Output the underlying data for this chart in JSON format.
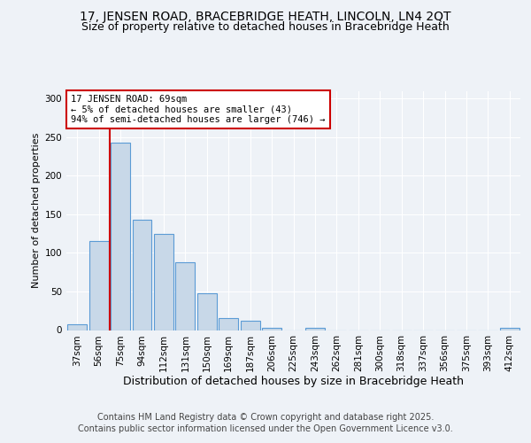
{
  "title1": "17, JENSEN ROAD, BRACEBRIDGE HEATH, LINCOLN, LN4 2QT",
  "title2": "Size of property relative to detached houses in Bracebridge Heath",
  "xlabel": "Distribution of detached houses by size in Bracebridge Heath",
  "ylabel": "Number of detached properties",
  "categories": [
    "37sqm",
    "56sqm",
    "75sqm",
    "94sqm",
    "112sqm",
    "131sqm",
    "150sqm",
    "169sqm",
    "187sqm",
    "206sqm",
    "225sqm",
    "243sqm",
    "262sqm",
    "281sqm",
    "300sqm",
    "318sqm",
    "337sqm",
    "356sqm",
    "375sqm",
    "393sqm",
    "412sqm"
  ],
  "values": [
    8,
    115,
    243,
    143,
    125,
    88,
    48,
    15,
    12,
    3,
    0,
    3,
    0,
    0,
    0,
    0,
    0,
    0,
    0,
    0,
    3
  ],
  "bar_color": "#c8d8e8",
  "bar_edge_color": "#5b9bd5",
  "vline_x": 1.5,
  "vline_color": "#cc0000",
  "annotation_text": "17 JENSEN ROAD: 69sqm\n← 5% of detached houses are smaller (43)\n94% of semi-detached houses are larger (746) →",
  "annotation_box_color": "#ffffff",
  "annotation_box_edge": "#cc0000",
  "ylim": [
    0,
    310
  ],
  "yticks": [
    0,
    50,
    100,
    150,
    200,
    250,
    300
  ],
  "footer1": "Contains HM Land Registry data © Crown copyright and database right 2025.",
  "footer2": "Contains public sector information licensed under the Open Government Licence v3.0.",
  "bg_color": "#eef2f7",
  "plot_bg_color": "#eef2f7",
  "title1_fontsize": 10,
  "title2_fontsize": 9,
  "xlabel_fontsize": 9,
  "ylabel_fontsize": 8,
  "tick_fontsize": 7.5,
  "footer_fontsize": 7
}
